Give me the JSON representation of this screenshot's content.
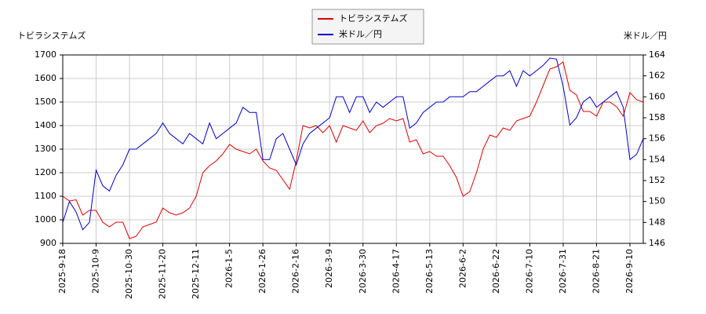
{
  "chart_data": {
    "type": "line",
    "y_label": "トビラシステムズ",
    "y2_label": "米ドル／円",
    "categories": [
      "2025-9-18",
      null,
      null,
      null,
      null,
      "2025-10-9",
      null,
      null,
      null,
      null,
      "2025-10-30",
      null,
      null,
      null,
      null,
      "2025-11-20",
      null,
      null,
      null,
      null,
      "2025-12-11",
      null,
      null,
      null,
      null,
      "2026-1-5",
      null,
      null,
      null,
      null,
      "2026-1-26",
      null,
      null,
      null,
      null,
      "2026-2-16",
      null,
      null,
      null,
      null,
      "2026-3-9",
      null,
      null,
      null,
      null,
      "2026-3-30",
      null,
      null,
      null,
      null,
      "2026-4-17",
      null,
      null,
      null,
      null,
      "2026-5-13",
      null,
      null,
      null,
      null,
      "2026-6-2",
      null,
      null,
      null,
      null,
      "2026-6-22",
      null,
      null,
      null,
      null,
      "2026-7-10",
      null,
      null,
      null,
      null,
      "2026-7-31",
      null,
      null,
      null,
      null,
      "2026-8-21",
      null,
      null,
      null,
      null,
      "2026-9-10",
      null,
      null
    ],
    "series": [
      {
        "name": "トビラシステムズ",
        "color": "#dd0000",
        "axis": "y",
        "values": [
          1100,
          1080,
          1085,
          1020,
          1040,
          1040,
          990,
          970,
          990,
          990,
          920,
          930,
          970,
          980,
          990,
          1050,
          1030,
          1020,
          1030,
          1050,
          1100,
          1200,
          1230,
          1250,
          1280,
          1320,
          1300,
          1290,
          1280,
          1300,
          1250,
          1220,
          1210,
          1170,
          1130,
          1250,
          1400,
          1390,
          1400,
          1370,
          1400,
          1330,
          1400,
          1390,
          1380,
          1420,
          1370,
          1400,
          1410,
          1430,
          1420,
          1430,
          1330,
          1340,
          1280,
          1290,
          1270,
          1270,
          1230,
          1180,
          1100,
          1120,
          1200,
          1300,
          1360,
          1350,
          1390,
          1380,
          1420,
          1430,
          1440,
          1500,
          1570,
          1640,
          1650,
          1670,
          1550,
          1530,
          1460,
          1460,
          1440,
          1500,
          1500,
          1480,
          1440,
          1540,
          1510,
          1500
        ]
      },
      {
        "name": "米ドル／円",
        "color": "#0000cc",
        "axis": "y2",
        "values": [
          148,
          150,
          149,
          147.3,
          148,
          153,
          151.5,
          151,
          152.5,
          153.5,
          155,
          155,
          155.5,
          156,
          156.5,
          157.5,
          156.5,
          156,
          155.5,
          156.5,
          156,
          155.5,
          157.5,
          156,
          156.5,
          157,
          157.5,
          159,
          158.5,
          158.5,
          154,
          154,
          156,
          156.5,
          155,
          153.5,
          155.5,
          156.5,
          157,
          157.5,
          158,
          160,
          160,
          158.5,
          160,
          160,
          158.5,
          159.5,
          159,
          159.5,
          160,
          160,
          157,
          157.5,
          158.5,
          159,
          159.5,
          159.5,
          160,
          160,
          160,
          160.5,
          160.5,
          161,
          161.5,
          162,
          162,
          162.5,
          161,
          162.5,
          162,
          162.5,
          163,
          163.7,
          163.6,
          161,
          157.3,
          158,
          159.5,
          160,
          159,
          159.5,
          160,
          160.5,
          159,
          154,
          154.5,
          156
        ]
      }
    ],
    "ylim": [
      900,
      1700
    ],
    "yticks": [
      900,
      1000,
      1100,
      1200,
      1300,
      1400,
      1500,
      1600,
      1700
    ],
    "y2lim": [
      146,
      164
    ],
    "y2ticks": [
      146,
      148,
      150,
      152,
      154,
      156,
      158,
      160,
      162,
      164
    ],
    "grid": true
  }
}
